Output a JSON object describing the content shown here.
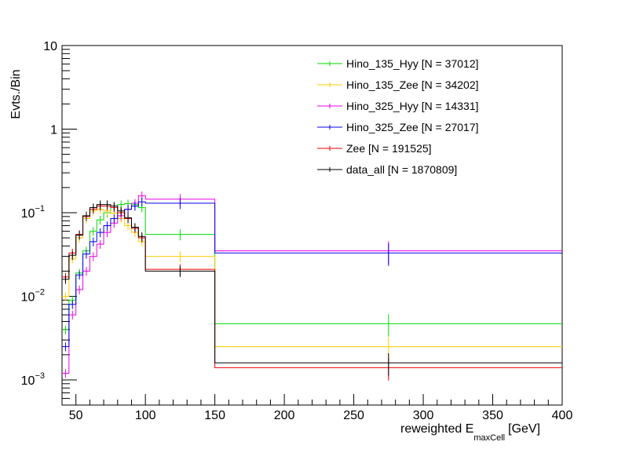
{
  "chart_data": {
    "type": "line",
    "title": "",
    "xlabel": "reweighted E",
    "xlabel_sub": "maxCell",
    "xlabel_unit": "[GeV]",
    "ylabel": "Evts./Bin",
    "xlim": [
      40,
      400
    ],
    "ylim": [
      0.0005,
      10
    ],
    "y_scale": "log",
    "grid": false,
    "legend_position": "top-right",
    "x_ticks": [
      50,
      100,
      150,
      200,
      250,
      300,
      350,
      400
    ],
    "x_tick_labels": [
      "50",
      "100",
      "150",
      "200",
      "250",
      "300",
      "350",
      "400"
    ],
    "y_ticks": [
      0.001,
      0.01,
      0.1,
      1,
      10
    ],
    "y_tick_labels": [
      {
        "base": "10",
        "exp": "−3"
      },
      {
        "base": "10",
        "exp": "−2"
      },
      {
        "base": "10",
        "exp": "−1"
      },
      {
        "base": "1",
        "exp": ""
      },
      {
        "base": "10",
        "exp": ""
      }
    ],
    "bin_edges": [
      40,
      45,
      50,
      55,
      60,
      65,
      70,
      75,
      80,
      85,
      90,
      95,
      100,
      150,
      400
    ],
    "series": [
      {
        "name": "Hino_135_Hyy [N = 37012]",
        "color": "#00dd00",
        "values": [
          0.004,
          0.009,
          0.019,
          0.035,
          0.06,
          0.082,
          0.1,
          0.115,
          0.125,
          0.128,
          0.125,
          0.115,
          0.055,
          0.0047
        ]
      },
      {
        "name": "Hino_135_Zee [N = 34202]",
        "color": "#ffcc00",
        "values": [
          0.01,
          0.028,
          0.05,
          0.085,
          0.105,
          0.11,
          0.105,
          0.098,
          0.085,
          0.07,
          0.058,
          0.045,
          0.03,
          0.0025
        ]
      },
      {
        "name": "Hino_325_Hyy [N = 14331]",
        "color": "#ee00ee",
        "values": [
          0.0012,
          0.006,
          0.012,
          0.02,
          0.03,
          0.042,
          0.058,
          0.075,
          0.092,
          0.11,
          0.13,
          0.16,
          0.145,
          0.035
        ]
      },
      {
        "name": "Hino_325_Zee [N = 27017]",
        "color": "#0000ee",
        "values": [
          0.0025,
          0.008,
          0.018,
          0.032,
          0.045,
          0.058,
          0.07,
          0.085,
          0.1,
          0.11,
          0.12,
          0.135,
          0.13,
          0.033
        ]
      },
      {
        "name": "Zee [N = 191525]",
        "color": "#ee0000",
        "values": [
          0.017,
          0.033,
          0.055,
          0.09,
          0.11,
          0.12,
          0.12,
          0.115,
          0.1,
          0.085,
          0.065,
          0.05,
          0.021,
          0.0014
        ]
      },
      {
        "name": "data_all [N = 1870809]",
        "color": "#000000",
        "values": [
          0.016,
          0.031,
          0.054,
          0.092,
          0.115,
          0.125,
          0.125,
          0.12,
          0.105,
          0.087,
          0.067,
          0.052,
          0.02,
          0.0016
        ]
      }
    ]
  }
}
